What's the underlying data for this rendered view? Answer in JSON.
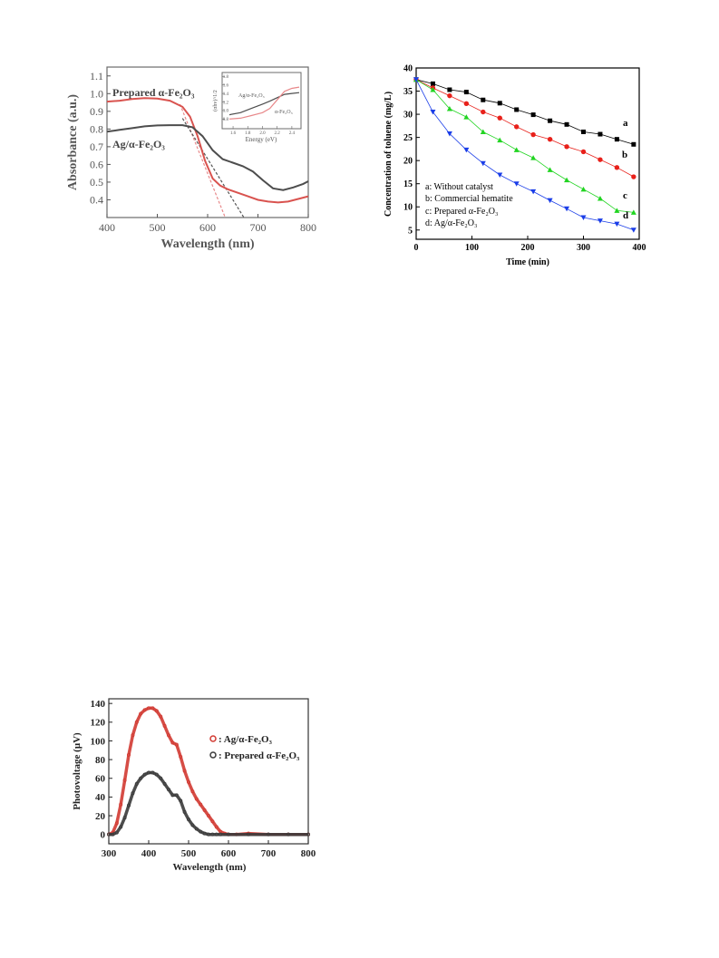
{
  "chart_data": [
    {
      "type": "line",
      "title": "",
      "xlabel": "Wavelength (nm)",
      "ylabel": "Absorbance (a.u.)",
      "xlim": [
        400,
        800
      ],
      "ylim": [
        0.3,
        1.15
      ],
      "xticks": [
        "400",
        "500",
        "600",
        "700",
        "800"
      ],
      "yticks": [
        "0.4",
        "0.5",
        "0.6",
        "0.7",
        "0.8",
        "0.9",
        "1.0",
        "1.1"
      ],
      "grid": false,
      "series": [
        {
          "name": "Prepared α-Fe₂O₃",
          "color": "#d9534f",
          "x": [
            400,
            425,
            450,
            475,
            500,
            525,
            550,
            565,
            580,
            595,
            610,
            625,
            640,
            660,
            680,
            700,
            720,
            740,
            760,
            780,
            800
          ],
          "y": [
            0.955,
            0.96,
            0.97,
            0.975,
            0.972,
            0.96,
            0.925,
            0.87,
            0.76,
            0.62,
            0.52,
            0.48,
            0.46,
            0.44,
            0.42,
            0.4,
            0.39,
            0.385,
            0.39,
            0.405,
            0.42
          ]
        },
        {
          "name": "Ag/α-Fe₂O₃",
          "color": "#4d4d4d",
          "x": [
            400,
            425,
            450,
            475,
            500,
            525,
            550,
            570,
            590,
            610,
            630,
            650,
            670,
            690,
            710,
            730,
            750,
            770,
            790,
            800
          ],
          "y": [
            0.785,
            0.795,
            0.805,
            0.815,
            0.82,
            0.822,
            0.822,
            0.81,
            0.76,
            0.68,
            0.63,
            0.61,
            0.59,
            0.56,
            0.51,
            0.465,
            0.455,
            0.47,
            0.49,
            0.505
          ]
        }
      ],
      "tangent_lines": [
        {
          "color": "#e8888a",
          "x": [
            545,
            635
          ],
          "y": [
            0.94,
            0.3
          ]
        },
        {
          "color": "#555555",
          "x": [
            550,
            672
          ],
          "y": [
            0.86,
            0.3
          ]
        }
      ],
      "inset": {
        "xlabel": "Energy (eV)",
        "ylabel": "(αhv)^1/2",
        "xticks": [
          "1.6",
          "1.8",
          "2.0",
          "2.2",
          "2.4"
        ],
        "yticks": [
          "0.8",
          "1.0",
          "1.2",
          "1.4",
          "1.6",
          "1.8"
        ],
        "xlim": [
          1.55,
          2.5
        ],
        "ylim": [
          0.7,
          1.85
        ],
        "series": [
          {
            "name": "Ag/α-Fe₂O₃",
            "color": "#4d4d4d",
            "x": [
              1.55,
              1.7,
              1.85,
              2.0,
              2.1,
              2.2,
              2.3,
              2.4,
              2.5
            ],
            "y": [
              0.9,
              0.95,
              1.05,
              1.15,
              1.22,
              1.3,
              1.38,
              1.4,
              1.42
            ]
          },
          {
            "name": "α-Fe₂O₃",
            "color": "#e8888a",
            "x": [
              1.55,
              1.7,
              1.85,
              2.0,
              2.1,
              2.2,
              2.3,
              2.4,
              2.5
            ],
            "y": [
              0.8,
              0.82,
              0.88,
              0.95,
              1.05,
              1.25,
              1.45,
              1.52,
              1.55
            ]
          }
        ]
      }
    },
    {
      "type": "line",
      "title": "",
      "xlabel": "Time (min)",
      "ylabel": "Concentration of toluene (mg/L)",
      "xlim": [
        0,
        400
      ],
      "ylim": [
        3,
        40
      ],
      "xticks": [
        "0",
        "100",
        "200",
        "300",
        "400"
      ],
      "yticks": [
        "5",
        "10",
        "15",
        "20",
        "25",
        "30",
        "35",
        "40"
      ],
      "grid": false,
      "legend": [
        "a: Without catalyst",
        "b: Commercial hematite",
        "c: Prepared α-Fe₂O₃",
        "d: Ag/α-Fe₂O₃"
      ],
      "series": [
        {
          "name": "a",
          "color": "#000000",
          "marker": "square",
          "x": [
            0,
            30,
            60,
            90,
            120,
            150,
            180,
            210,
            240,
            270,
            300,
            330,
            360,
            390
          ],
          "y": [
            37.5,
            36.6,
            35.3,
            34.8,
            33.1,
            32.4,
            31.0,
            29.9,
            28.6,
            27.8,
            26.2,
            25.7,
            24.6,
            23.5
          ]
        },
        {
          "name": "b",
          "color": "#e8201a",
          "marker": "circle",
          "x": [
            0,
            30,
            60,
            90,
            120,
            150,
            180,
            210,
            240,
            270,
            300,
            330,
            360,
            390
          ],
          "y": [
            37.5,
            35.7,
            34.0,
            32.3,
            30.5,
            29.2,
            27.3,
            25.6,
            24.6,
            23.0,
            21.9,
            20.2,
            18.5,
            16.5
          ]
        },
        {
          "name": "c",
          "color": "#21d421",
          "marker": "triangle-up",
          "x": [
            0,
            30,
            60,
            90,
            120,
            150,
            180,
            210,
            240,
            270,
            300,
            330,
            360,
            390
          ],
          "y": [
            37.5,
            35.3,
            31.2,
            29.4,
            26.2,
            24.4,
            22.3,
            20.6,
            18.0,
            15.8,
            13.8,
            11.8,
            9.2,
            8.8
          ]
        },
        {
          "name": "d",
          "color": "#1a3de8",
          "marker": "triangle-down",
          "x": [
            0,
            30,
            60,
            90,
            120,
            150,
            180,
            210,
            240,
            270,
            300,
            330,
            360,
            390
          ],
          "y": [
            37.5,
            30.5,
            25.8,
            22.3,
            19.4,
            16.9,
            15.0,
            13.3,
            11.4,
            9.6,
            7.7,
            7.0,
            6.3,
            5.0
          ]
        }
      ]
    },
    {
      "type": "line",
      "title": "",
      "xlabel": "Wavelength (nm)",
      "ylabel": "Photovoltage (μV)",
      "xlim": [
        300,
        800
      ],
      "ylim": [
        -10,
        145
      ],
      "xticks": [
        "300",
        "400",
        "500",
        "600",
        "700",
        "800"
      ],
      "yticks": [
        "0",
        "20",
        "40",
        "60",
        "80",
        "100",
        "120",
        "140"
      ],
      "grid": false,
      "legend": [
        ": Ag/α-Fe₂O₃",
        ": Prepared α-Fe₂O₃"
      ],
      "series": [
        {
          "name": "Ag/α-Fe₂O₃",
          "color": "#d23a32",
          "x": [
            300,
            310,
            320,
            330,
            340,
            350,
            360,
            370,
            380,
            390,
            400,
            410,
            420,
            430,
            440,
            450,
            460,
            470,
            480,
            490,
            500,
            510,
            520,
            530,
            540,
            550,
            560,
            570,
            580,
            590,
            600,
            620,
            650,
            700,
            750,
            800
          ],
          "y": [
            0,
            2,
            12,
            32,
            58,
            85,
            106,
            120,
            129,
            133,
            135,
            135,
            132,
            126,
            116,
            106,
            98,
            96,
            83,
            68,
            56,
            46,
            38,
            32,
            26,
            20,
            14,
            8,
            3,
            1,
            0,
            0,
            1,
            0,
            0,
            0
          ]
        },
        {
          "name": "Prepared α-Fe₂O₃",
          "color": "#3a3a3a",
          "x": [
            300,
            310,
            320,
            330,
            340,
            350,
            360,
            370,
            380,
            390,
            400,
            410,
            420,
            430,
            440,
            450,
            460,
            470,
            480,
            490,
            500,
            510,
            520,
            530,
            540,
            550,
            560,
            570,
            580,
            600,
            650,
            700,
            750,
            800
          ],
          "y": [
            0,
            0,
            2,
            8,
            18,
            31,
            44,
            54,
            60,
            64,
            66,
            66,
            64,
            60,
            54,
            48,
            42,
            42,
            36,
            24,
            16,
            10,
            6,
            3,
            1,
            0,
            0,
            0,
            0,
            0,
            0,
            0,
            0,
            0
          ]
        }
      ]
    }
  ],
  "labels": {
    "chart1_prepared": "Prepared α-Fe₂O₃",
    "chart1_ag": "Ag/α-Fe₂O₃",
    "inset_ag": "Ag/α-Fe₂O₃",
    "inset_fe": "α-Fe₂O₃"
  }
}
